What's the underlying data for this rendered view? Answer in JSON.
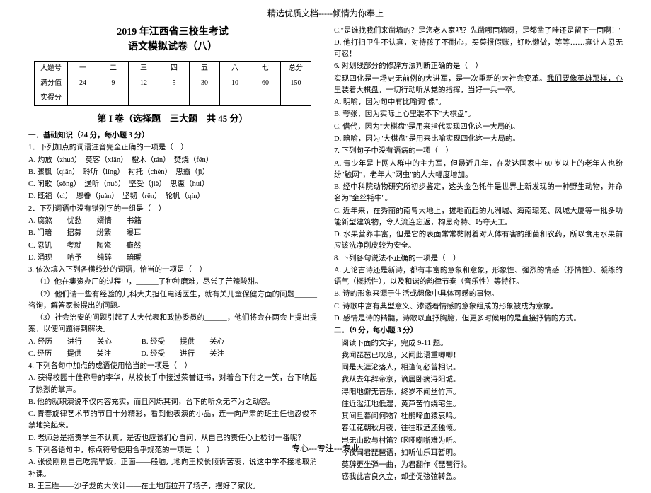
{
  "header_top": "精选优质文档-----倾情为你奉上",
  "title_main": "2019 年江西省三校生考试",
  "title_sub": "语文模拟试卷（八）",
  "score_table": {
    "headers": [
      "大题号",
      "一",
      "二",
      "三",
      "四",
      "五",
      "六",
      "七",
      "总分"
    ],
    "row_full": [
      "满分值",
      "24",
      "9",
      "12",
      "5",
      "30",
      "10",
      "60",
      "150"
    ],
    "row_got": [
      "实得分",
      "",
      "",
      "",
      "",
      "",
      "",
      "",
      ""
    ]
  },
  "volume_header": "第 I 卷（选择题　三大题　共 45 分）",
  "sec1_title": "一．基础知识（24 分，每小题 3 分）",
  "q1": "1．下列加点的词语注音完全正确的一项是（　）",
  "q1a": "A. 灼放（zhuó）　莫客（xiān）　橙木（tán）　焚烧（fén）",
  "q1b": "B. 骤飘（qiǎn）　聆听（líng）　衬托（chèn）　思霸（jì）",
  "q1c": "C. 闲歌（sǒng）　送听（nuò）　坚受（jiè）　思惠（huì）",
  "q1d": "D. 既福（cì）　恩眷（juàn）　坚韧（rěn）　轮帆（qín）",
  "q2": "2．下列词语中没有错别字的一组是（　）",
  "q2a": "A. 腐煞　　忧愁　　婿情　　书籍",
  "q2b": "B. 门暗　　招募　　纷繁　　曝耳",
  "q2c": "C. 忍饥　　考就　　陶瓷　　癫然",
  "q2d": "D. 涌现　　呐予　　纯碎　　暗暖",
  "q3": "3. 依次填入下列各横线处的词语，恰当的一项是（　）",
  "q3_1": "（1）他在集资办厂的过程中，______了种种磨难，尽尝了苦辣酸甜。",
  "q3_2": "（2）他们请一些有经验的儿科大夫担任电话医生，就有关儿童保健方面的问题______咨询，解答家长提出的问题。",
  "q3_3": "（3）社会治安的问题引起了人大代表和政协委员的______，他们将会在两会上提出提案，以使问题得到解决。",
  "q3a": "A. 经历　　进行　　关心　　　　B. 经受　　提供　　关心",
  "q3c": "C. 经历　　提供　　关注　　　　D. 经受　　进行　　关注",
  "q4": "4. 下列各句中加点的成语使用恰当的一项是（　）",
  "q4a": "A. 获得校园十佳称号的李华，从校长手中接过荣誉证书，对着台下付之一笑，台下响起了热烈的掌声。",
  "q4b": "B. 他的就职演说不仅内容充实，而且闪烁其词，台下的听众无不为之动容。",
  "q4c": "C. 青春旋律艺术节的节目十分精彩，看到他表演的小品，连一向严肃的班主任也忍俊不禁地笑起来。",
  "q4d": "D. 老师总是指责学生不认真，是否也应该扪心自问，从自己的责任心上检讨一番呢？",
  "q5": "5. 下列各语句中，标点符号使用合乎规范的一项是（　）",
  "q5a": "A. 张侯刚刚自己吃完早饭，正面——般脑儿地向王校长倾诉苦衷，说这中学不接地取消补课。",
  "q5b": "B. 王三胜——沙子龙的大伙计——在土地庙拉开了场子，摆好了家伙。",
  "q5c": "C.\"是谁找我们来凿墙的？是您老人家吧？先凿哪面墙呀，是都凿了哇还是留下一面啊！\"",
  "q5d": "D. 他打扫卫生不认真，对待孩子不耐心，买菜报假账，好吃懒做，等等……真让人忍无可忍！",
  "q6": "6. 对划线部分的修辞方法判断正确的是（　）",
  "q6stem_a": "实现四化是一场史无前例的大进军，是一次重新的大社会变革。",
  "q6stem_b": "我们要像英雄那样，心里装着大棋盘",
  "q6stem_c": "，一切行动听从党的指挥，当好一兵一卒。",
  "q6a": "A. 明喻，因为句中有比喻词\"像\"。",
  "q6b": "B. 夸张，因为实际上心里装不下\"大棋盘\"。",
  "q6c": "C. 借代，因为\"大棋盘\"是用来指代实现四化这一大局的。",
  "q6d": "D. 暗喻，因为\"大棋盘\"是用来比喻实现四化这一大局的。",
  "q7": "7. 下列句子中没有语病的一项（　）",
  "q7a": "A. 青少年是上网人群中的主力军，但最近几年，在发达国家中 60 岁以上的老年人也纷纷\"触网\"，老年人\"网虫\"的人大幅度增加。",
  "q7b": "B. 经中科院动物研究所初步鉴定，这头金色牦牛是世界上新发现的一种野生动物，并命名为\"金丝牦牛\"。",
  "q7c": "C. 近年来，在秀丽的南粤大地上，拔地而起的九洲城、海南琼苑、风城大厦等一批多功能新型建筑物，令人流连忘返，构思奇特、巧夺天工。",
  "q7d": "D. 水果营养丰富，但是它的表面常常黏附着对人体有害的细菌和农药，所以食用水果前应该洗净削皮较为安全。",
  "q8": "8. 下列各句说法不正确的一项是（　）",
  "q8a": "A. 无论古诗还是新诗，都有丰富的意象和意象，形象性、强烈的情感（抒情性）、凝练的语气（概括性），以及和谐的韵律节奏（音乐性）等特征。",
  "q8b": "B. 诗的形象来源于生活或想像中具体可感的事物。",
  "q8c": "C. 诗歌中富有典型意义、渗透着情感的意象组成的形象被成为意象。",
  "q8d": "D. 感情是诗的精髓，诗歌以直抒胸臆，但更多时候用的是直接抒情的方式。",
  "sec2_title": "二．（9 分，每小题 3 分）",
  "sec2_intro": "阅读下面的文字，完成 9-11 题。",
  "poem_1": "我闻琵琶已叹息，又闻此语重唧唧！",
  "poem_2": "同是天涯沦落人，相逢何必曾相识。",
  "poem_3": "我从去年辞帝京，谪居卧病浔阳城。",
  "poem_4": "浔阳地僻无音乐，终岁不闻丝竹声。",
  "poem_5": "住近湓江地低湿，黄芦苦竹绕宅生。",
  "poem_6": "其间旦暮闻何物？杜鹃啼血猿哀鸣。",
  "poem_7": "春江花朝秋月夜，往往取酒还独倾。",
  "poem_8": "岂无山歌与村笛？呕哑嘲哳难为听。",
  "poem_9": "今夜闻君琵琶语，如听仙乐耳暂明。",
  "poem_10": "莫辞更坐弹一曲，为君翻作《琵琶行》。",
  "poem_11": "感我此言良久立，却坐促弦弦转急。",
  "footer": "专心---专注---专业"
}
